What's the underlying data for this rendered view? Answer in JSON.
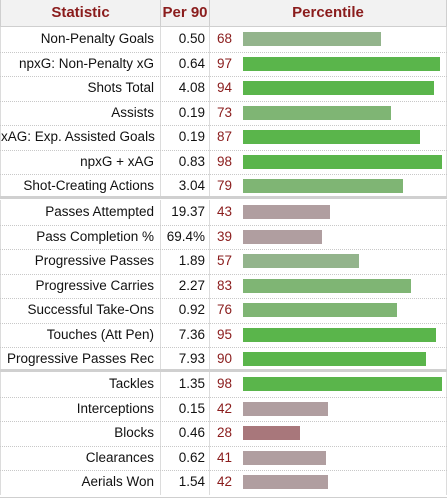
{
  "table": {
    "headers": {
      "statistic": "Statistic",
      "per90": "Per 90",
      "percentile": "Percentile"
    },
    "groups": [
      {
        "rows": [
          {
            "stat": "Non-Penalty Goals",
            "per90": "0.50",
            "pct": 68
          },
          {
            "stat": "npxG: Non-Penalty xG",
            "per90": "0.64",
            "pct": 97
          },
          {
            "stat": "Shots Total",
            "per90": "4.08",
            "pct": 94
          },
          {
            "stat": "Assists",
            "per90": "0.19",
            "pct": 73
          },
          {
            "stat": "xAG: Exp. Assisted Goals",
            "per90": "0.19",
            "pct": 87
          },
          {
            "stat": "npxG + xAG",
            "per90": "0.83",
            "pct": 98
          },
          {
            "stat": "Shot-Creating Actions",
            "per90": "3.04",
            "pct": 79
          }
        ]
      },
      {
        "rows": [
          {
            "stat": "Passes Attempted",
            "per90": "19.37",
            "pct": 43
          },
          {
            "stat": "Pass Completion %",
            "per90": "69.4%",
            "pct": 39
          },
          {
            "stat": "Progressive Passes",
            "per90": "1.89",
            "pct": 57
          },
          {
            "stat": "Progressive Carries",
            "per90": "2.27",
            "pct": 83
          },
          {
            "stat": "Successful Take-Ons",
            "per90": "0.92",
            "pct": 76
          },
          {
            "stat": "Touches (Att Pen)",
            "per90": "7.36",
            "pct": 95
          },
          {
            "stat": "Progressive Passes Rec",
            "per90": "7.93",
            "pct": 90
          }
        ]
      },
      {
        "rows": [
          {
            "stat": "Tackles",
            "per90": "1.35",
            "pct": 98
          },
          {
            "stat": "Interceptions",
            "per90": "0.15",
            "pct": 42
          },
          {
            "stat": "Blocks",
            "per90": "0.46",
            "pct": 28
          },
          {
            "stat": "Clearances",
            "per90": "0.62",
            "pct": 41
          },
          {
            "stat": "Aerials Won",
            "per90": "1.54",
            "pct": 42
          }
        ]
      }
    ]
  },
  "colors": {
    "header_text": "#8a1c1c",
    "percentile_text": "#8a1c1c",
    "bar_high": "#5ab54b",
    "bar_mid_high": "#7fb574",
    "bar_mid": "#93b48c",
    "bar_low": "#b09ea0",
    "bar_very_low": "#a8777b"
  }
}
